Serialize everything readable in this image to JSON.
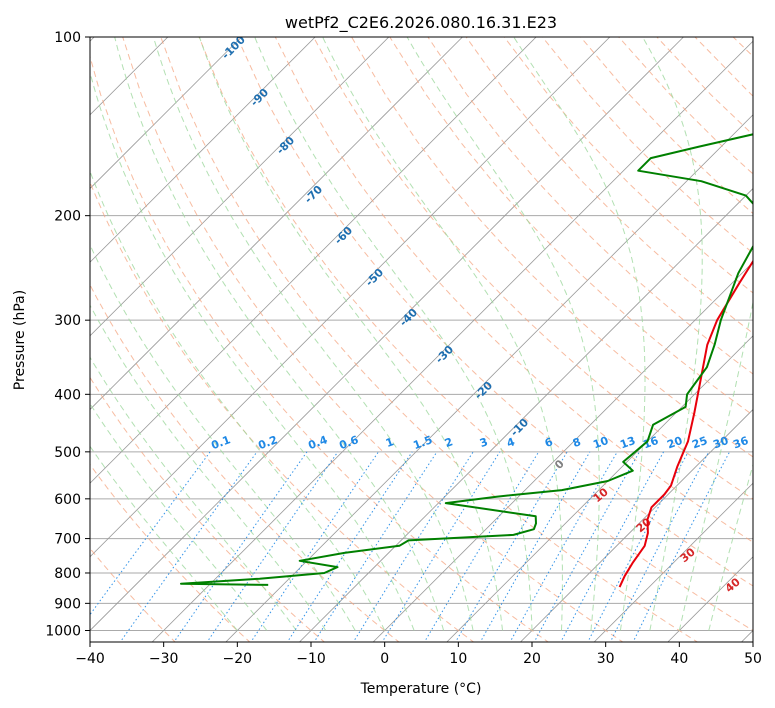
{
  "colors": {
    "temperature": "#e8000b",
    "dewpoint": "#008000",
    "isotherm": "#999999",
    "isobar": "#aaaaaa",
    "dry_adiabat": "#f4a582",
    "moist_adiabat": "#9fd89f",
    "mixing_ratio": "#1e88e5",
    "isotherm_label": "#1f6fb0",
    "mixing_label": "#1e88e5",
    "moist_label": "#d62728",
    "zero_label": "#808080"
  },
  "chart_data": {
    "type": "line",
    "title": "wetPf2_C2E6.2026.080.16.31.E23",
    "xlabel": "Temperature (°C)",
    "ylabel": "Pressure (hPa)",
    "xlim": [
      -40,
      50
    ],
    "ylim": [
      1050,
      100
    ],
    "x_ticks": [
      "−40",
      "−30",
      "−20",
      "−10",
      "0",
      "10",
      "20",
      "30",
      "40",
      "50"
    ],
    "y_ticks": [
      "100",
      "200",
      "300",
      "400",
      "500",
      "600",
      "700",
      "800",
      "900",
      "1000"
    ],
    "series": [
      {
        "name": "Temperature",
        "points": [
          [
            26.0,
            845
          ],
          [
            25.2,
            810
          ],
          [
            24.5,
            770
          ],
          [
            23.8,
            720
          ],
          [
            22.5,
            685
          ],
          [
            20.6,
            650
          ],
          [
            19.5,
            620
          ],
          [
            19.5,
            590
          ],
          [
            19.2,
            570
          ],
          [
            17.5,
            530
          ],
          [
            15.5,
            480
          ],
          [
            12.5,
            430
          ],
          [
            9.0,
            380
          ],
          [
            5.0,
            330
          ],
          [
            3.0,
            300
          ],
          [
            1.0,
            260
          ],
          [
            -0.6,
            230
          ],
          [
            -1.8,
            210
          ],
          [
            -0.8,
            195
          ],
          [
            2.5,
            180
          ],
          [
            5.5,
            170
          ],
          [
            7.0,
            160
          ],
          [
            7.5,
            150
          ],
          [
            8.8,
            130
          ],
          [
            9.6,
            115
          ],
          [
            9.6,
            100
          ]
        ]
      },
      {
        "name": "Dewpoint",
        "points": [
          [
            -22.0,
            838
          ],
          [
            -34.0,
            834
          ],
          [
            -24.0,
            818
          ],
          [
            -16.0,
            800
          ],
          [
            -15.0,
            782
          ],
          [
            -21.0,
            763
          ],
          [
            -16.0,
            740
          ],
          [
            -9.5,
            720
          ],
          [
            -9.0,
            705
          ],
          [
            4.5,
            690
          ],
          [
            6.5,
            675
          ],
          [
            6.0,
            660
          ],
          [
            5.0,
            642
          ],
          [
            -9.0,
            610
          ],
          [
            -3.0,
            595
          ],
          [
            5.0,
            580
          ],
          [
            10.0,
            560
          ],
          [
            12.0,
            538
          ],
          [
            9.5,
            520
          ],
          [
            10.0,
            480
          ],
          [
            8.5,
            450
          ],
          [
            10.5,
            420
          ],
          [
            9.0,
            400
          ],
          [
            8.5,
            380
          ],
          [
            8.0,
            360
          ],
          [
            6.0,
            330
          ],
          [
            3.5,
            300
          ],
          [
            -0.5,
            250
          ],
          [
            -2.5,
            220
          ],
          [
            -4.5,
            205
          ],
          [
            -6.5,
            195
          ],
          [
            -10.0,
            185
          ],
          [
            -18.0,
            175
          ],
          [
            -28.0,
            168
          ],
          [
            -28.0,
            160
          ],
          [
            -23.0,
            153
          ],
          [
            -15.0,
            143
          ],
          [
            -13.0,
            135
          ],
          [
            -10.0,
            120
          ],
          [
            -3.0,
            100
          ]
        ]
      }
    ],
    "isotherm_labels": [
      "-100",
      "-90",
      "-80",
      "-70",
      "-60",
      "-50",
      "-40",
      "-30",
      "-20",
      "-10",
      "0"
    ],
    "mixing_ratio_labels": [
      "0.1",
      "0.2",
      "0.4",
      "0.6",
      "1",
      "1.5",
      "2",
      "3",
      "4",
      "6",
      "8",
      "10",
      "13",
      "16",
      "20",
      "25",
      "30",
      "36"
    ],
    "moist_adiabat_labels": [
      "10",
      "20",
      "30",
      "40"
    ],
    "grid": true
  }
}
